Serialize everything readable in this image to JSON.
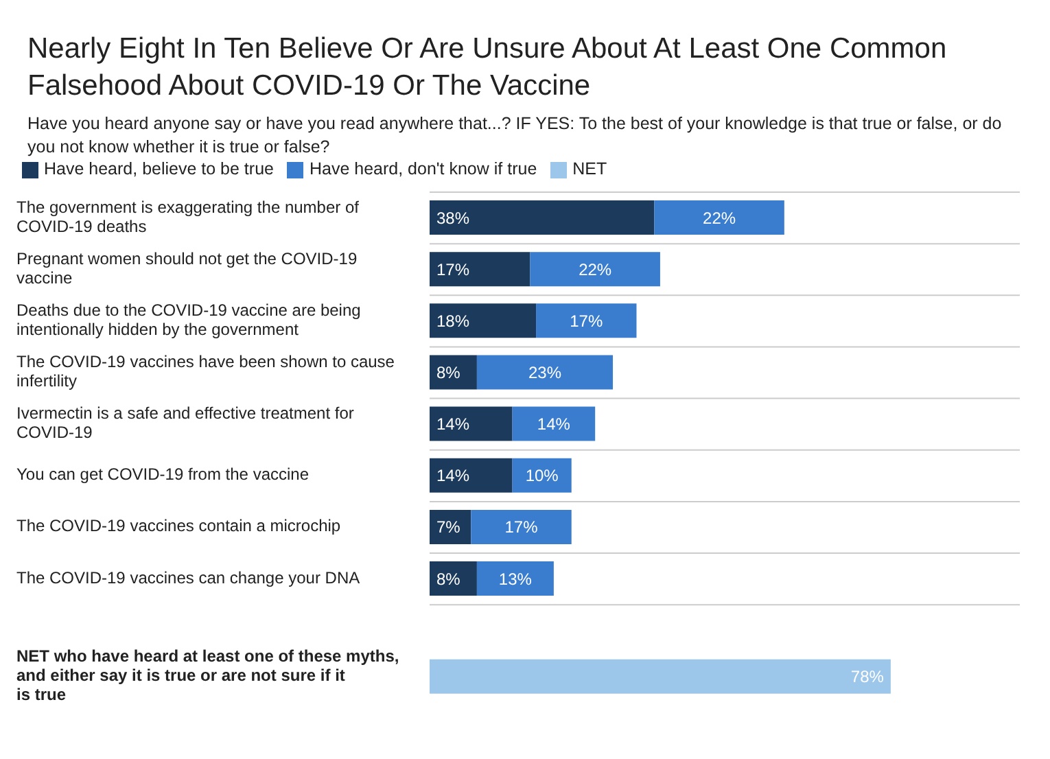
{
  "chart_data": {
    "type": "bar",
    "orientation": "horizontal",
    "stacked": true,
    "grid": "y",
    "legend": "top left",
    "title": "Nearly Eight In Ten Believe Or Are Unsure About At Least One Common Falsehood About COVID-19 Or The Vaccine",
    "subtitle": "Have you heard anyone say or have you read anywhere that...? IF YES: To the best of your knowledge is that true or false, or do you not know whether it is true or false?",
    "categories": [
      "The government is exaggerating the number of COVID-19 deaths",
      "Pregnant women should not get the COVID-19 vaccine",
      "Deaths due to the COVID-19 vaccine are being intentionally hidden by the government",
      "The COVID-19 vaccines have been shown to cause infertility",
      "Ivermectin is a safe and effective treatment for COVID-19",
      "You can get COVID-19 from the vaccine",
      "The COVID-19 vaccines contain a microchip",
      "The COVID-19 vaccines can change your DNA",
      "NET who have heard at least one of these myths, and either say it is true or are not sure if it is true"
    ],
    "series": [
      {
        "name": "Have heard, believe to be true",
        "color": "#1b3a5c",
        "values": [
          38,
          17,
          18,
          8,
          14,
          14,
          7,
          8,
          null
        ],
        "value_labels": [
          "38%",
          "17%",
          "18%",
          "8%",
          "14%",
          "14%",
          "7%",
          "8%",
          null
        ]
      },
      {
        "name": "Have heard, don't know if true",
        "color": "#3a7dcf",
        "values": [
          22,
          22,
          17,
          23,
          14,
          10,
          17,
          13,
          null
        ],
        "value_labels": [
          "22%",
          "22%",
          "17%",
          "23%",
          "14%",
          "10%",
          "17%",
          "13%",
          null
        ]
      },
      {
        "name": "NET",
        "color": "#9cc6ea",
        "values": [
          null,
          null,
          null,
          null,
          null,
          null,
          null,
          null,
          78
        ],
        "value_labels": [
          null,
          null,
          null,
          null,
          null,
          null,
          null,
          null,
          "78%"
        ]
      }
    ]
  }
}
